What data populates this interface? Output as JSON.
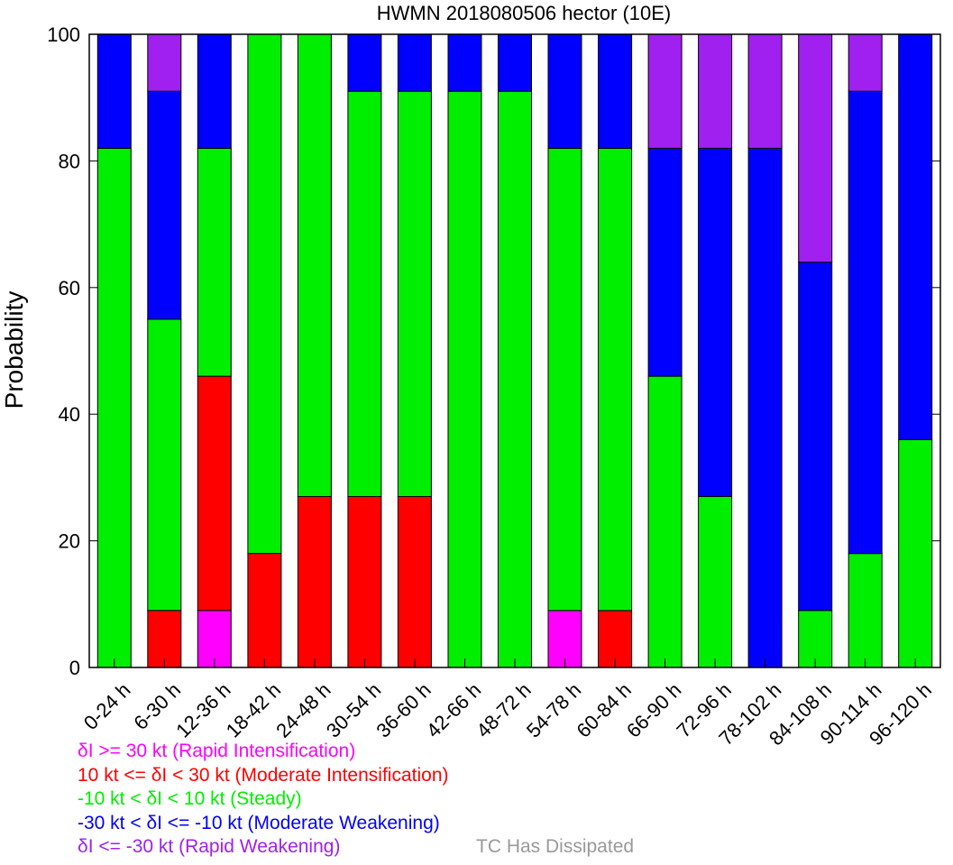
{
  "chart_data": {
    "type": "bar",
    "stacked": true,
    "title": "HWMN 2018080506 hector (10E)",
    "ylabel": "Probability",
    "ylim": [
      0,
      100
    ],
    "yticks": [
      "0",
      "20",
      "40",
      "60",
      "80",
      "100"
    ],
    "grid": false,
    "categories": [
      "0-24 h",
      "6-30 h",
      "12-36 h",
      "18-42 h",
      "24-48 h",
      "30-54 h",
      "36-60 h",
      "42-66 h",
      "48-72 h",
      "54-78 h",
      "60-84 h",
      "66-90 h",
      "72-96 h",
      "78-102 h",
      "84-108 h",
      "90-114 h",
      "96-120 h"
    ],
    "series": [
      {
        "key": "ri",
        "color": "#ff00ff",
        "values": [
          0,
          0,
          9,
          0,
          0,
          0,
          0,
          0,
          0,
          9,
          0,
          0,
          0,
          0,
          0,
          0,
          0
        ]
      },
      {
        "key": "mi",
        "color": "#ff0000",
        "values": [
          0,
          9,
          37,
          18,
          27,
          27,
          27,
          0,
          0,
          0,
          9,
          0,
          0,
          0,
          0,
          0,
          0
        ]
      },
      {
        "key": "steady",
        "color": "#00ee00",
        "values": [
          82,
          46,
          36,
          82,
          73,
          64,
          64,
          91,
          91,
          73,
          73,
          46,
          27,
          0,
          9,
          18,
          36
        ]
      },
      {
        "key": "mw",
        "color": "#0000ff",
        "values": [
          18,
          36,
          18,
          0,
          0,
          9,
          9,
          9,
          9,
          18,
          18,
          36,
          55,
          82,
          55,
          73,
          64
        ]
      },
      {
        "key": "rw",
        "color": "#a020f0",
        "values": [
          0,
          9,
          0,
          0,
          0,
          0,
          0,
          0,
          0,
          0,
          0,
          18,
          18,
          18,
          36,
          9,
          0
        ]
      }
    ],
    "legend": {
      "placement": "bottom-left",
      "entries": [
        {
          "text": "δI >= 30 kt (Rapid Intensification)",
          "color": "#ff00ff"
        },
        {
          "text": "10 kt <= δI < 30 kt (Moderate Intensification)",
          "color": "#ff0000"
        },
        {
          "text": "-10 kt < δI < 10 kt (Steady)",
          "color": "#00ee00"
        },
        {
          "text": "-30 kt < δI <= -10 kt (Moderate Weakening)",
          "color": "#0000ff"
        },
        {
          "text": "δI <= -30 kt (Rapid Weakening)",
          "color": "#a020f0"
        }
      ],
      "extra": {
        "text": "TC Has Dissipated",
        "color": "#999999"
      }
    }
  }
}
